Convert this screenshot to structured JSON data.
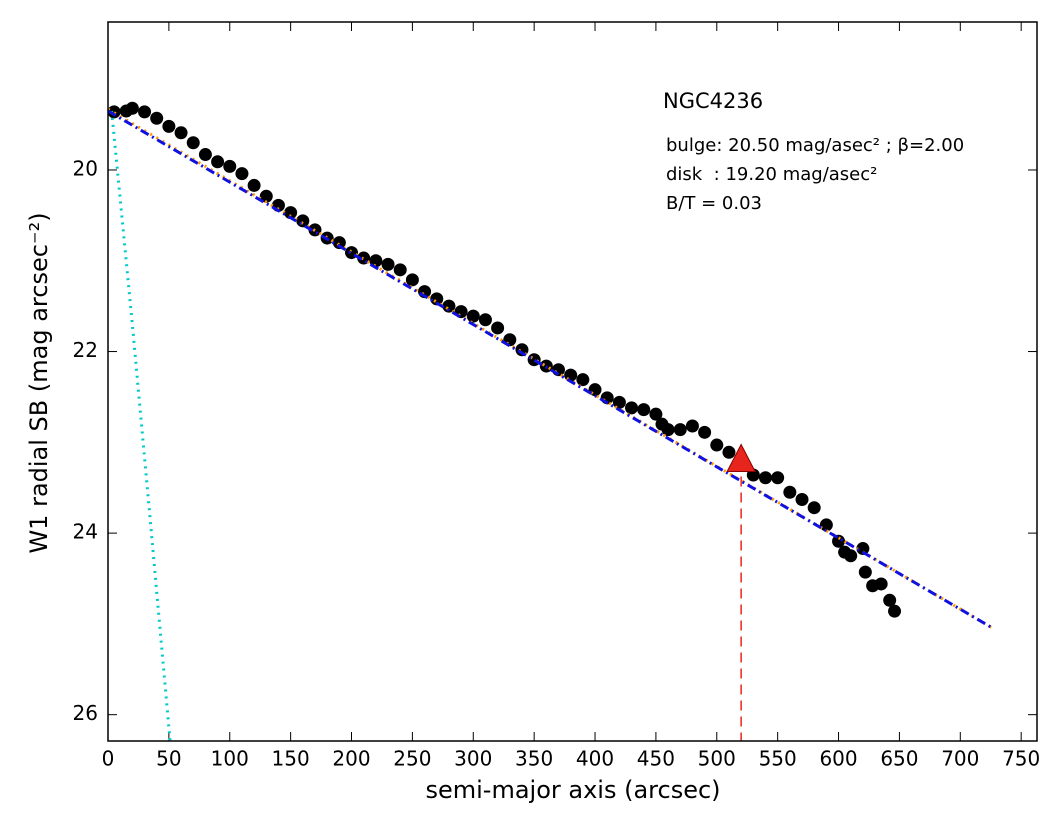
{
  "chart_data": {
    "type": "scatter",
    "xlabel": "semi-major axis (arcsec)",
    "ylabel": "W1 radial SB (mag arcsec⁻²)",
    "xlim": [
      0,
      763
    ],
    "ylim": [
      18.37,
      26.29
    ],
    "y_inverted": true,
    "xticks": [
      0,
      50,
      100,
      150,
      200,
      250,
      300,
      350,
      400,
      450,
      500,
      550,
      600,
      650,
      700,
      750
    ],
    "yticks": [
      20,
      22,
      24,
      26
    ],
    "annotations": [
      "NGC4236",
      "bulge: 20.50 mag/asec² ; β=2.00",
      "disk  : 19.20 mag/asec²",
      "B/T = 0.03"
    ],
    "series": [
      {
        "style": "markers",
        "color": "#000000",
        "x": [
          5,
          15,
          20,
          30,
          40,
          50,
          60,
          70,
          80,
          90,
          100,
          110,
          120,
          130,
          140,
          150,
          160,
          170,
          180,
          190,
          200,
          210,
          220,
          230,
          240,
          250,
          260,
          270,
          280,
          290,
          300,
          310,
          320,
          330,
          340,
          350,
          360,
          370,
          380,
          390,
          400,
          410,
          420,
          430,
          440,
          450,
          455,
          460,
          470,
          480,
          490,
          500,
          510,
          520,
          530,
          540,
          550,
          560,
          570,
          580,
          590,
          600,
          605,
          610,
          620,
          622,
          628,
          635,
          642,
          646
        ],
        "values": [
          19.36,
          19.35,
          19.32,
          19.36,
          19.43,
          19.52,
          19.59,
          19.7,
          19.83,
          19.91,
          19.96,
          20.04,
          20.17,
          20.29,
          20.39,
          20.47,
          20.56,
          20.66,
          20.75,
          20.8,
          20.91,
          20.97,
          21.0,
          21.04,
          21.1,
          21.21,
          21.34,
          21.42,
          21.5,
          21.56,
          21.61,
          21.65,
          21.74,
          21.87,
          21.98,
          22.09,
          22.16,
          22.2,
          22.26,
          22.31,
          22.42,
          22.51,
          22.56,
          22.62,
          22.64,
          22.69,
          22.8,
          22.86,
          22.86,
          22.82,
          22.89,
          23.03,
          23.11,
          23.19,
          23.36,
          23.39,
          23.39,
          23.55,
          23.63,
          23.72,
          23.91,
          24.09,
          24.21,
          24.25,
          24.17,
          24.43,
          24.58,
          24.56,
          24.74,
          24.86
        ]
      },
      {
        "style": "dotted",
        "color": "#00c8c8",
        "x": [
          3,
          20,
          35,
          51
        ],
        "values": [
          19.35,
          21.7,
          23.9,
          26.29
        ]
      },
      {
        "style": "dotted",
        "color": "#ff9900",
        "x": [
          0,
          727
        ],
        "values": [
          19.33,
          25.05
        ]
      },
      {
        "style": "dashdot",
        "color": "#1010e0",
        "x": [
          0,
          727
        ],
        "values": [
          19.35,
          25.05
        ]
      }
    ],
    "marker": {
      "x": 520,
      "y": 23.2,
      "color": "#e8251c"
    }
  }
}
